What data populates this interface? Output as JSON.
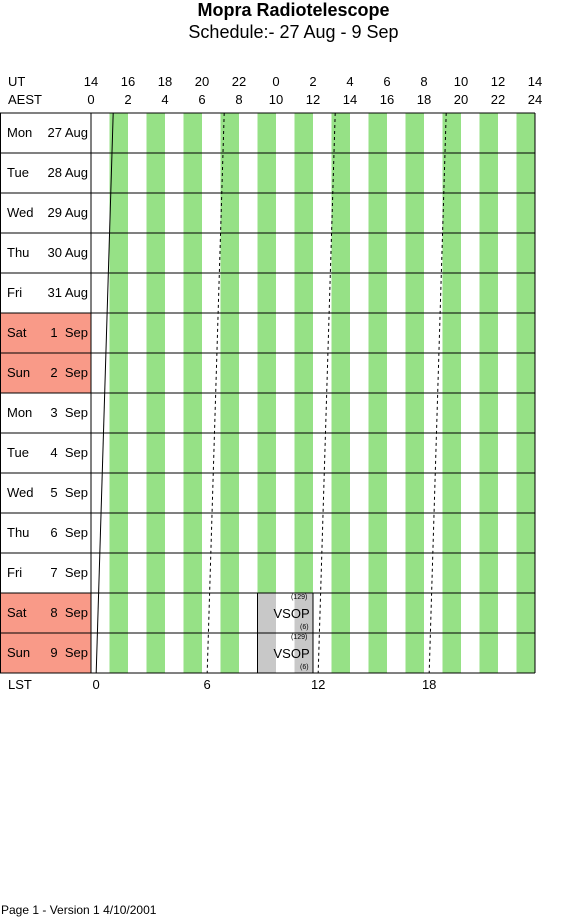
{
  "title": "Mopra Radiotelescope",
  "subtitle": "Schedule:- 27 Aug - 9  Sep",
  "axes": {
    "ut_label": "UT",
    "aest_label": "AEST",
    "lst_label": "LST",
    "ut_ticks": [
      "14",
      "16",
      "18",
      "20",
      "22",
      "0",
      "2",
      "4",
      "6",
      "8",
      "10",
      "12",
      "14"
    ],
    "aest_ticks": [
      "0",
      "2",
      "4",
      "6",
      "8",
      "10",
      "12",
      "14",
      "16",
      "18",
      "20",
      "22",
      "24"
    ],
    "lst_ticks": [
      "0",
      "6",
      "12",
      "18"
    ]
  },
  "days": [
    {
      "dow": "Mon",
      "date": "27 Aug",
      "weekend": false
    },
    {
      "dow": "Tue",
      "date": "28 Aug",
      "weekend": false
    },
    {
      "dow": "Wed",
      "date": "29 Aug",
      "weekend": false
    },
    {
      "dow": "Thu",
      "date": "30 Aug",
      "weekend": false
    },
    {
      "dow": "Fri",
      "date": "31 Aug",
      "weekend": false
    },
    {
      "dow": "Sat",
      "date": "1  Sep",
      "weekend": true
    },
    {
      "dow": "Sun",
      "date": "2  Sep",
      "weekend": true
    },
    {
      "dow": "Mon",
      "date": "3  Sep",
      "weekend": false
    },
    {
      "dow": "Tue",
      "date": "4  Sep",
      "weekend": false
    },
    {
      "dow": "Wed",
      "date": "5  Sep",
      "weekend": false
    },
    {
      "dow": "Thu",
      "date": "6  Sep",
      "weekend": false
    },
    {
      "dow": "Fri",
      "date": "7  Sep",
      "weekend": false
    },
    {
      "dow": "Sat",
      "date": "8  Sep",
      "weekend": true
    },
    {
      "dow": "Sun",
      "date": "9  Sep",
      "weekend": true
    }
  ],
  "blocks": [
    {
      "day_index": 12,
      "start_aest": 9.0,
      "end_aest": 12.0,
      "label": "VSOP",
      "note_top": "(129)",
      "note_bottom": "(6)"
    },
    {
      "day_index": 13,
      "start_aest": 9.0,
      "end_aest": 12.0,
      "label": "VSOP",
      "note_top": "(129)",
      "note_bottom": "(6)"
    }
  ],
  "colors": {
    "stripe": "#96e186",
    "weekend": "#f99a88",
    "block_fill": "#c8c8c8",
    "line": "#000000"
  },
  "footer": "Page 1 - Version 1  4/10/2001"
}
